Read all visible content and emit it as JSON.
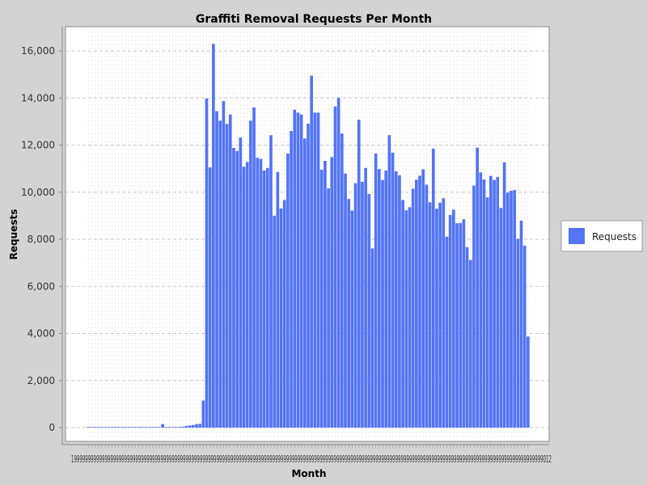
{
  "chart_data": {
    "type": "bar",
    "title": "Graffiti Removal Requests Per Month",
    "xlabel": "Month",
    "ylabel": "Requests",
    "ylim": [
      0,
      17000
    ],
    "yticks": [
      0,
      2000,
      4000,
      6000,
      8000,
      10000,
      12000,
      14000,
      16000
    ],
    "ytick_labels": [
      "0",
      "2,000",
      "4,000",
      "6,000",
      "8,000",
      "10,000",
      "12,000",
      "14,000",
      "16,000"
    ],
    "grid": true,
    "legend_position": "right",
    "xtick_summary": "category tick labels are dense and overlapping; readable fragments begin with 199 and end with 012",
    "series": [
      {
        "name": "Requests",
        "color": "#5374f7",
        "values": [
          30,
          10,
          10,
          20,
          10,
          10,
          20,
          10,
          10,
          10,
          10,
          10,
          10,
          10,
          10,
          10,
          10,
          10,
          10,
          10,
          10,
          10,
          150,
          10,
          10,
          10,
          20,
          30,
          40,
          70,
          90,
          110,
          150,
          160,
          1150,
          13980,
          11050,
          16300,
          13440,
          13040,
          13870,
          12900,
          13300,
          11880,
          11750,
          12320,
          11080,
          11280,
          13040,
          13600,
          11460,
          11410,
          10920,
          11030,
          12420,
          9000,
          10860,
          9310,
          9670,
          11640,
          12600,
          13500,
          13380,
          13300,
          12280,
          12910,
          14950,
          13380,
          13380,
          10950,
          11330,
          10160,
          11490,
          13640,
          14010,
          12490,
          10790,
          9710,
          9220,
          10380,
          13080,
          10440,
          11030,
          9920,
          7610,
          11640,
          10980,
          10520,
          10920,
          12420,
          11680,
          10890,
          10720,
          9670,
          9230,
          9360,
          10150,
          10530,
          10700,
          10970,
          10320,
          9570,
          11850,
          9300,
          9550,
          9740,
          8110,
          9030,
          9260,
          8680,
          8690,
          8850,
          7660,
          7120,
          10280,
          11890,
          10840,
          10540,
          9780,
          10690,
          10520,
          10650,
          9330,
          11270,
          9980,
          10060,
          10090,
          8020,
          8790,
          7730,
          3870
        ]
      }
    ],
    "legend": [
      {
        "label": "Requests",
        "color": "#5374f7"
      }
    ]
  }
}
